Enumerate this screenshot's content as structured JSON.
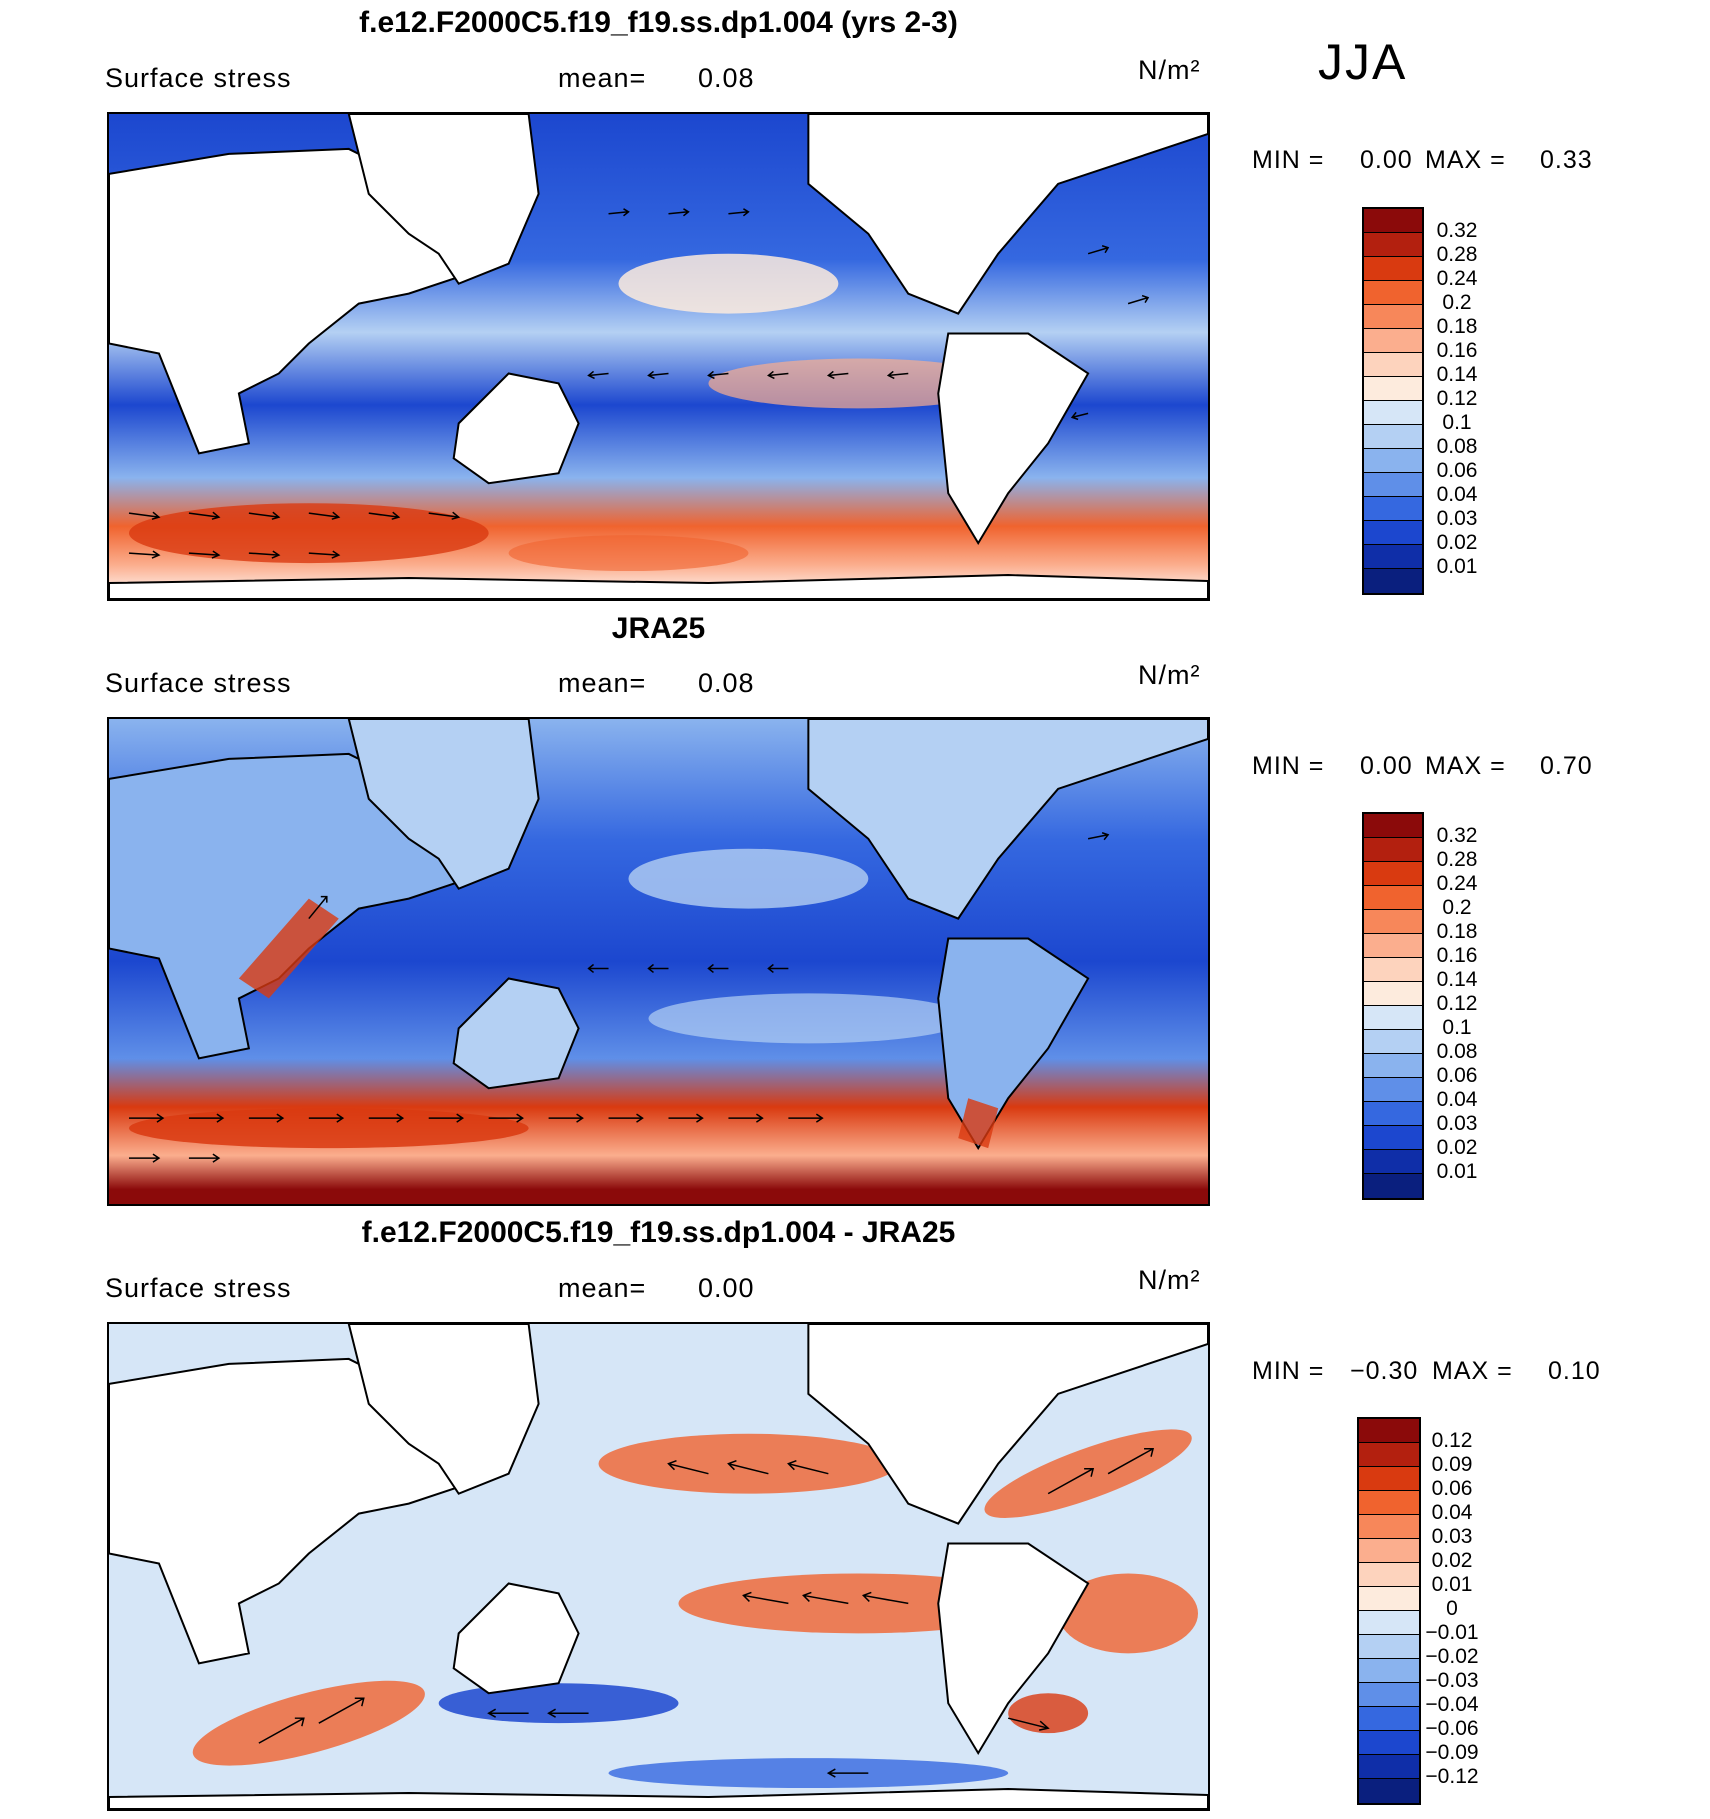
{
  "season": "JJA",
  "panels": [
    {
      "title": "f.e12.F2000C5.f19_f19.ss.dp1.004 (yrs 2-3)",
      "variable": "Surface stress",
      "mean_label": "mean=",
      "mean_value": "0.08",
      "units": "N/m²",
      "min_label": "MIN =",
      "min_value": "0.00",
      "max_label": "MAX =",
      "max_value": "0.33",
      "colorbar": {
        "levels": [
          "0.32",
          "0.28",
          "0.24",
          "0.2",
          "0.18",
          "0.16",
          "0.14",
          "0.12",
          "0.1",
          "0.08",
          "0.06",
          "0.04",
          "0.03",
          "0.02",
          "0.01"
        ],
        "colors": [
          "#8b0a0a",
          "#b3200f",
          "#d93a10",
          "#f0632e",
          "#f7875a",
          "#fbae8e",
          "#fdd3bd",
          "#fdebdd",
          "#d6e6f7",
          "#b4d0f3",
          "#8ab3ee",
          "#5f8fe8",
          "#3568e0",
          "#1c47cf",
          "#0f2ea8",
          "#0a1f7e"
        ]
      }
    },
    {
      "title": "JRA25",
      "variable": "Surface stress",
      "mean_label": "mean=",
      "mean_value": "0.08",
      "units": "N/m²",
      "min_label": "MIN =",
      "min_value": "0.00",
      "max_label": "MAX =",
      "max_value": "0.70",
      "colorbar": {
        "levels": [
          "0.32",
          "0.28",
          "0.24",
          "0.2",
          "0.18",
          "0.16",
          "0.14",
          "0.12",
          "0.1",
          "0.08",
          "0.06",
          "0.04",
          "0.03",
          "0.02",
          "0.01"
        ],
        "colors": [
          "#8b0a0a",
          "#b3200f",
          "#d93a10",
          "#f0632e",
          "#f7875a",
          "#fbae8e",
          "#fdd3bd",
          "#fdebdd",
          "#d6e6f7",
          "#b4d0f3",
          "#8ab3ee",
          "#5f8fe8",
          "#3568e0",
          "#1c47cf",
          "#0f2ea8",
          "#0a1f7e"
        ]
      }
    },
    {
      "title": "f.e12.F2000C5.f19_f19.ss.dp1.004 - JRA25",
      "variable": "Surface stress",
      "mean_label": "mean=",
      "mean_value": "0.00",
      "units": "N/m²",
      "min_label": "MIN =",
      "min_value": "−0.30",
      "max_label": "MAX =",
      "max_value": "0.10",
      "colorbar": {
        "levels": [
          "0.12",
          "0.09",
          "0.06",
          "0.04",
          "0.03",
          "0.02",
          "0.01",
          "0",
          "−0.01",
          "−0.02",
          "−0.03",
          "−0.04",
          "−0.06",
          "−0.09",
          "−0.12"
        ],
        "colors": [
          "#8b0a0a",
          "#b3200f",
          "#d93a10",
          "#f0632e",
          "#f7875a",
          "#fbae8e",
          "#fdd3bd",
          "#fdebdd",
          "#d6e6f7",
          "#b4d0f3",
          "#8ab3ee",
          "#5f8fe8",
          "#3568e0",
          "#1c47cf",
          "#0f2ea8",
          "#0a1f7e"
        ]
      }
    }
  ]
}
